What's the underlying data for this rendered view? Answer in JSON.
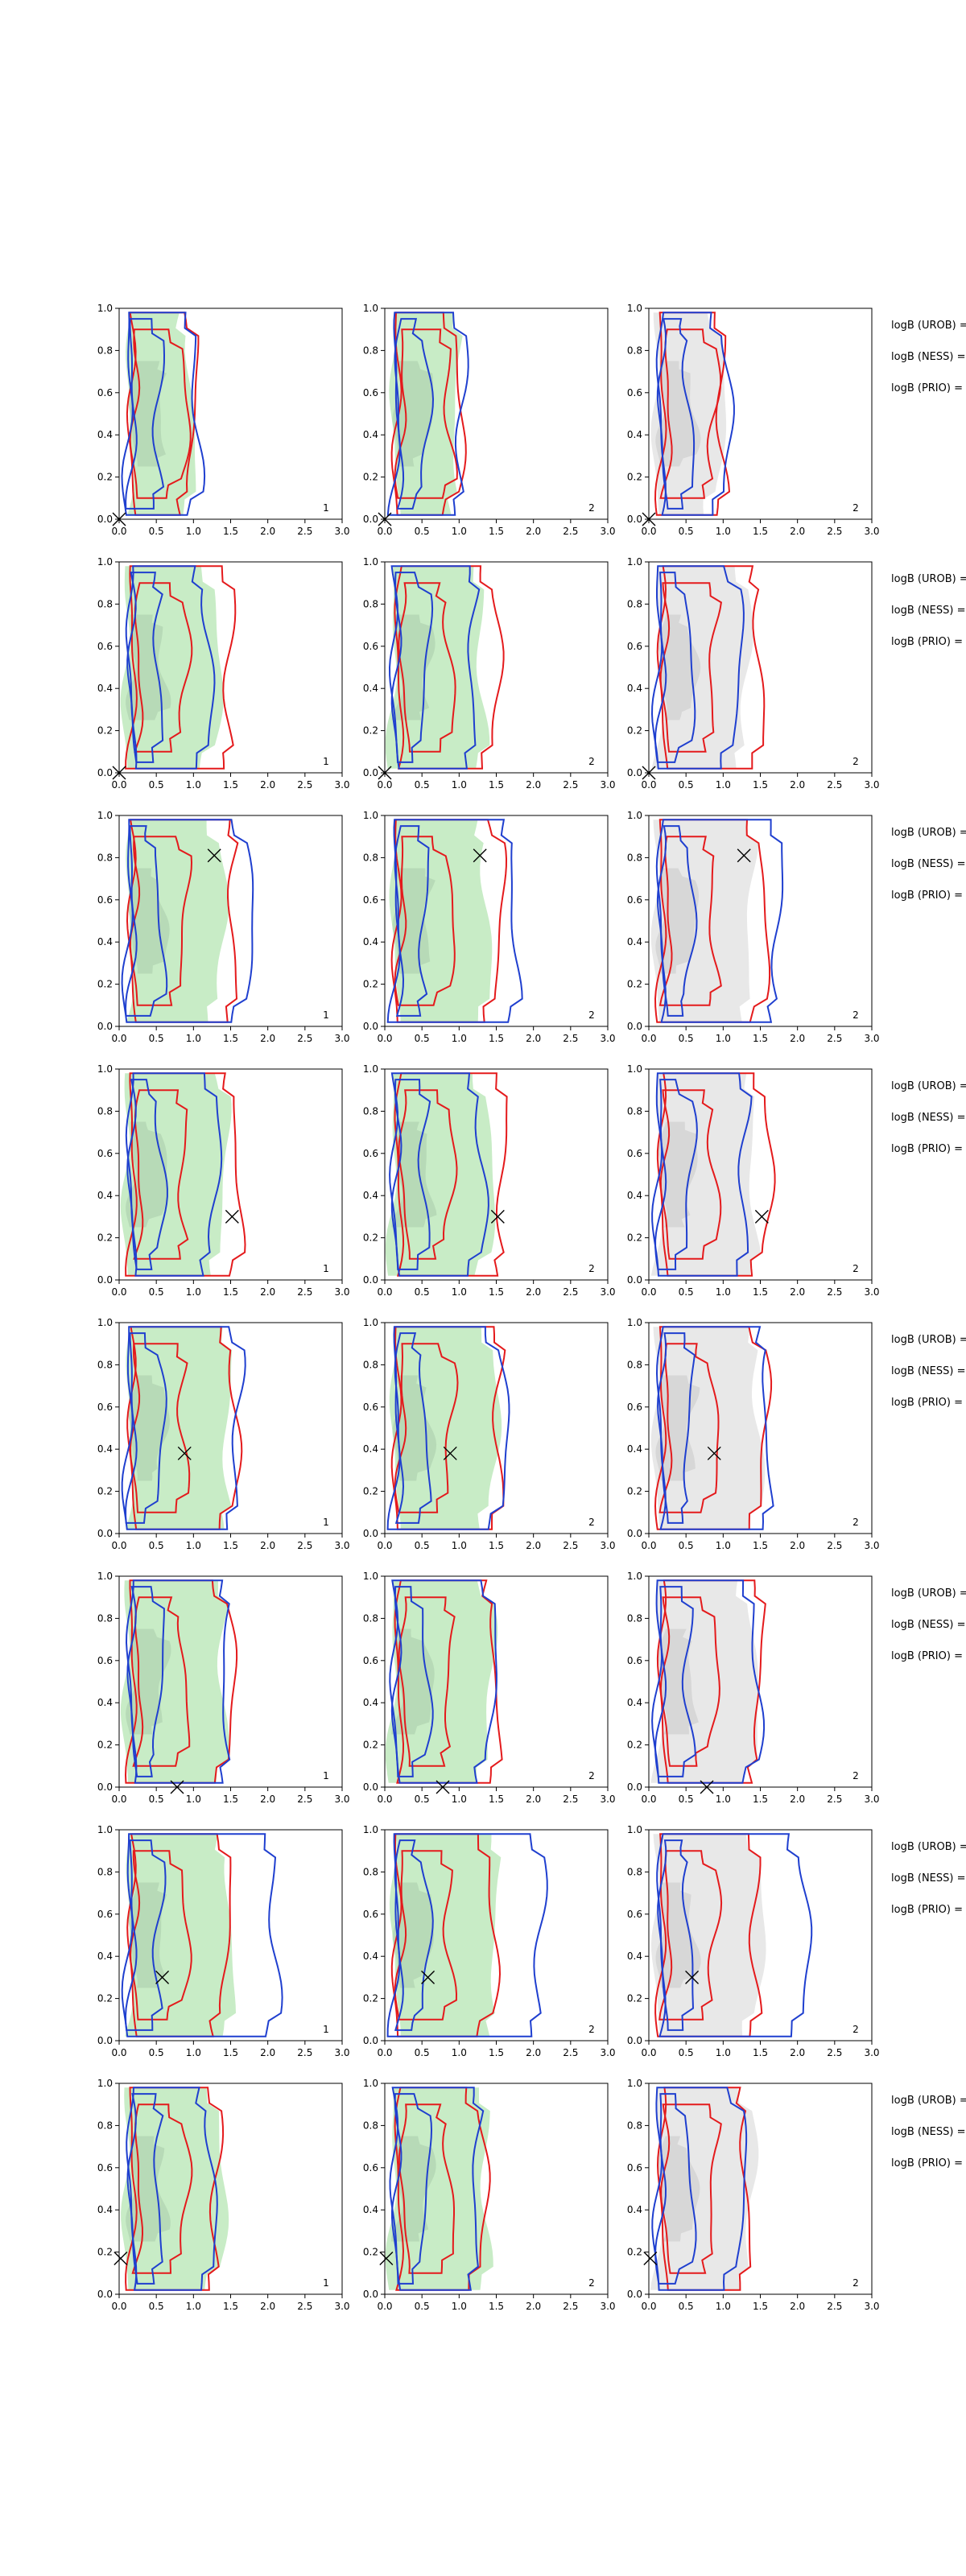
{
  "figure": {
    "panel_labels": [
      "1",
      "2",
      "2"
    ],
    "side_labels": [
      "logB (UROB) =",
      "logB (NESS) =",
      "logB (PRIO) ="
    ]
  },
  "colors": {
    "fill_green": "#c8ecc6",
    "fill_green_inner": "#b3d6b3",
    "fill_grey": "#e8e8e8",
    "fill_grey_inner": "#d2d2d2",
    "contour_red": "#e41a1c",
    "contour_blue": "#1f3fcf",
    "axis": "#000000"
  },
  "chart_data": {
    "type": "contour",
    "xlim": [
      0,
      3
    ],
    "ylim": [
      0,
      1
    ],
    "xticks": [
      "0.0",
      "0.5",
      "1.0",
      "1.5",
      "2.0",
      "2.5",
      "3.0"
    ],
    "yticks": [
      "0.0",
      "0.2",
      "0.4",
      "0.6",
      "0.8",
      "1.0"
    ],
    "columns": [
      {
        "fill": "green",
        "label": "1"
      },
      {
        "fill": "green",
        "label": "2"
      },
      {
        "fill": "grey",
        "label": "2"
      }
    ],
    "rows": [
      {
        "marker": [
          0.0,
          0.0
        ],
        "fill": [
          [
            0.22,
            0.5,
            0.98,
            1.52,
            0.02,
            1.02
          ],
          [
            0.3,
            0.42,
            0.6,
            0.85,
            0.25,
            0.75
          ]
        ],
        "red": [
          [
            0.3,
            0.45,
            1.0,
            1.65,
            0.02,
            1.05
          ],
          [
            0.6,
            0.35,
            0.88,
            1.6,
            0.1,
            0.9
          ]
        ],
        "blue": [
          [
            0.25,
            0.5,
            1.05,
            1.8,
            0.02,
            1.05
          ],
          [
            0.3,
            0.45,
            0.55,
            0.88,
            0.05,
            0.95
          ]
        ]
      },
      {
        "marker": [
          0.0,
          0.0
        ],
        "fill": [
          [
            0.22,
            0.5,
            1.32,
            1.52,
            0.02,
            1.02
          ],
          [
            0.3,
            0.42,
            0.6,
            0.85,
            0.25,
            0.75
          ]
        ],
        "red": [
          [
            0.3,
            0.45,
            1.5,
            1.65,
            0.02,
            1.05
          ],
          [
            0.6,
            0.35,
            0.88,
            1.6,
            0.1,
            0.9
          ]
        ],
        "blue": [
          [
            0.25,
            0.5,
            1.2,
            1.8,
            0.02,
            1.05
          ],
          [
            0.3,
            0.45,
            0.55,
            0.88,
            0.05,
            0.95
          ]
        ]
      },
      {
        "marker": [
          1.28,
          0.81
        ],
        "fill": [
          [
            0.22,
            0.5,
            1.38,
            1.52,
            0.02,
            1.02
          ],
          [
            0.3,
            0.42,
            0.6,
            0.85,
            0.25,
            0.75
          ]
        ],
        "red": [
          [
            0.3,
            0.45,
            1.55,
            1.65,
            0.02,
            1.05
          ],
          [
            0.6,
            0.35,
            0.88,
            1.6,
            0.1,
            0.9
          ]
        ],
        "blue": [
          [
            0.25,
            0.5,
            1.75,
            1.8,
            0.02,
            1.05
          ],
          [
            0.3,
            0.45,
            0.55,
            0.88,
            0.05,
            0.95
          ]
        ]
      },
      {
        "marker": [
          1.52,
          0.3
        ],
        "fill": [
          [
            0.22,
            0.5,
            1.42,
            1.52,
            0.02,
            1.02
          ],
          [
            0.3,
            0.42,
            0.6,
            0.85,
            0.25,
            0.75
          ]
        ],
        "red": [
          [
            0.3,
            0.45,
            1.6,
            1.65,
            0.02,
            1.05
          ],
          [
            0.6,
            0.35,
            0.88,
            1.6,
            0.1,
            0.9
          ]
        ],
        "blue": [
          [
            0.25,
            0.5,
            1.3,
            1.8,
            0.02,
            1.05
          ],
          [
            0.3,
            0.45,
            0.55,
            0.88,
            0.05,
            0.95
          ]
        ]
      },
      {
        "marker": [
          0.88,
          0.38
        ],
        "fill": [
          [
            0.22,
            0.5,
            1.48,
            1.52,
            0.02,
            1.02
          ],
          [
            0.3,
            0.42,
            0.6,
            0.85,
            0.25,
            0.75
          ]
        ],
        "red": [
          [
            0.3,
            0.45,
            1.55,
            1.65,
            0.02,
            1.05
          ],
          [
            0.6,
            0.35,
            0.88,
            1.6,
            0.1,
            0.9
          ]
        ],
        "blue": [
          [
            0.25,
            0.5,
            1.6,
            1.8,
            0.02,
            1.05
          ],
          [
            0.3,
            0.45,
            0.55,
            0.88,
            0.05,
            0.95
          ]
        ]
      },
      {
        "marker": [
          0.78,
          0.0
        ],
        "fill": [
          [
            0.22,
            0.5,
            1.42,
            1.52,
            0.02,
            1.02
          ],
          [
            0.3,
            0.42,
            0.6,
            0.85,
            0.25,
            0.75
          ]
        ],
        "red": [
          [
            0.3,
            0.45,
            1.5,
            1.65,
            0.02,
            1.05
          ],
          [
            0.6,
            0.35,
            0.88,
            1.6,
            0.1,
            0.9
          ]
        ],
        "blue": [
          [
            0.25,
            0.5,
            1.45,
            1.8,
            0.02,
            1.05
          ],
          [
            0.3,
            0.45,
            0.55,
            0.88,
            0.05,
            0.95
          ]
        ]
      },
      {
        "marker": [
          0.58,
          0.3
        ],
        "fill": [
          [
            0.22,
            0.5,
            1.5,
            1.52,
            0.02,
            1.02
          ],
          [
            0.3,
            0.42,
            0.6,
            0.85,
            0.25,
            0.75
          ]
        ],
        "red": [
          [
            0.3,
            0.45,
            1.45,
            1.65,
            0.02,
            1.05
          ],
          [
            0.6,
            0.35,
            0.88,
            1.6,
            0.1,
            0.9
          ]
        ],
        "blue": [
          [
            0.25,
            0.5,
            2.1,
            1.8,
            0.02,
            1.05
          ],
          [
            0.3,
            0.45,
            0.55,
            0.88,
            0.05,
            0.95
          ]
        ]
      },
      {
        "marker": [
          0.02,
          0.17
        ],
        "fill": [
          [
            0.22,
            0.5,
            1.38,
            1.52,
            0.02,
            1.02
          ],
          [
            0.3,
            0.42,
            0.6,
            0.85,
            0.25,
            0.75
          ]
        ],
        "red": [
          [
            0.3,
            0.45,
            1.32,
            1.65,
            0.02,
            1.05
          ],
          [
            0.6,
            0.35,
            0.88,
            1.6,
            0.1,
            0.9
          ]
        ],
        "blue": [
          [
            0.25,
            0.5,
            1.25,
            1.8,
            0.02,
            1.05
          ],
          [
            0.3,
            0.45,
            0.55,
            0.88,
            0.05,
            0.95
          ]
        ]
      }
    ]
  }
}
